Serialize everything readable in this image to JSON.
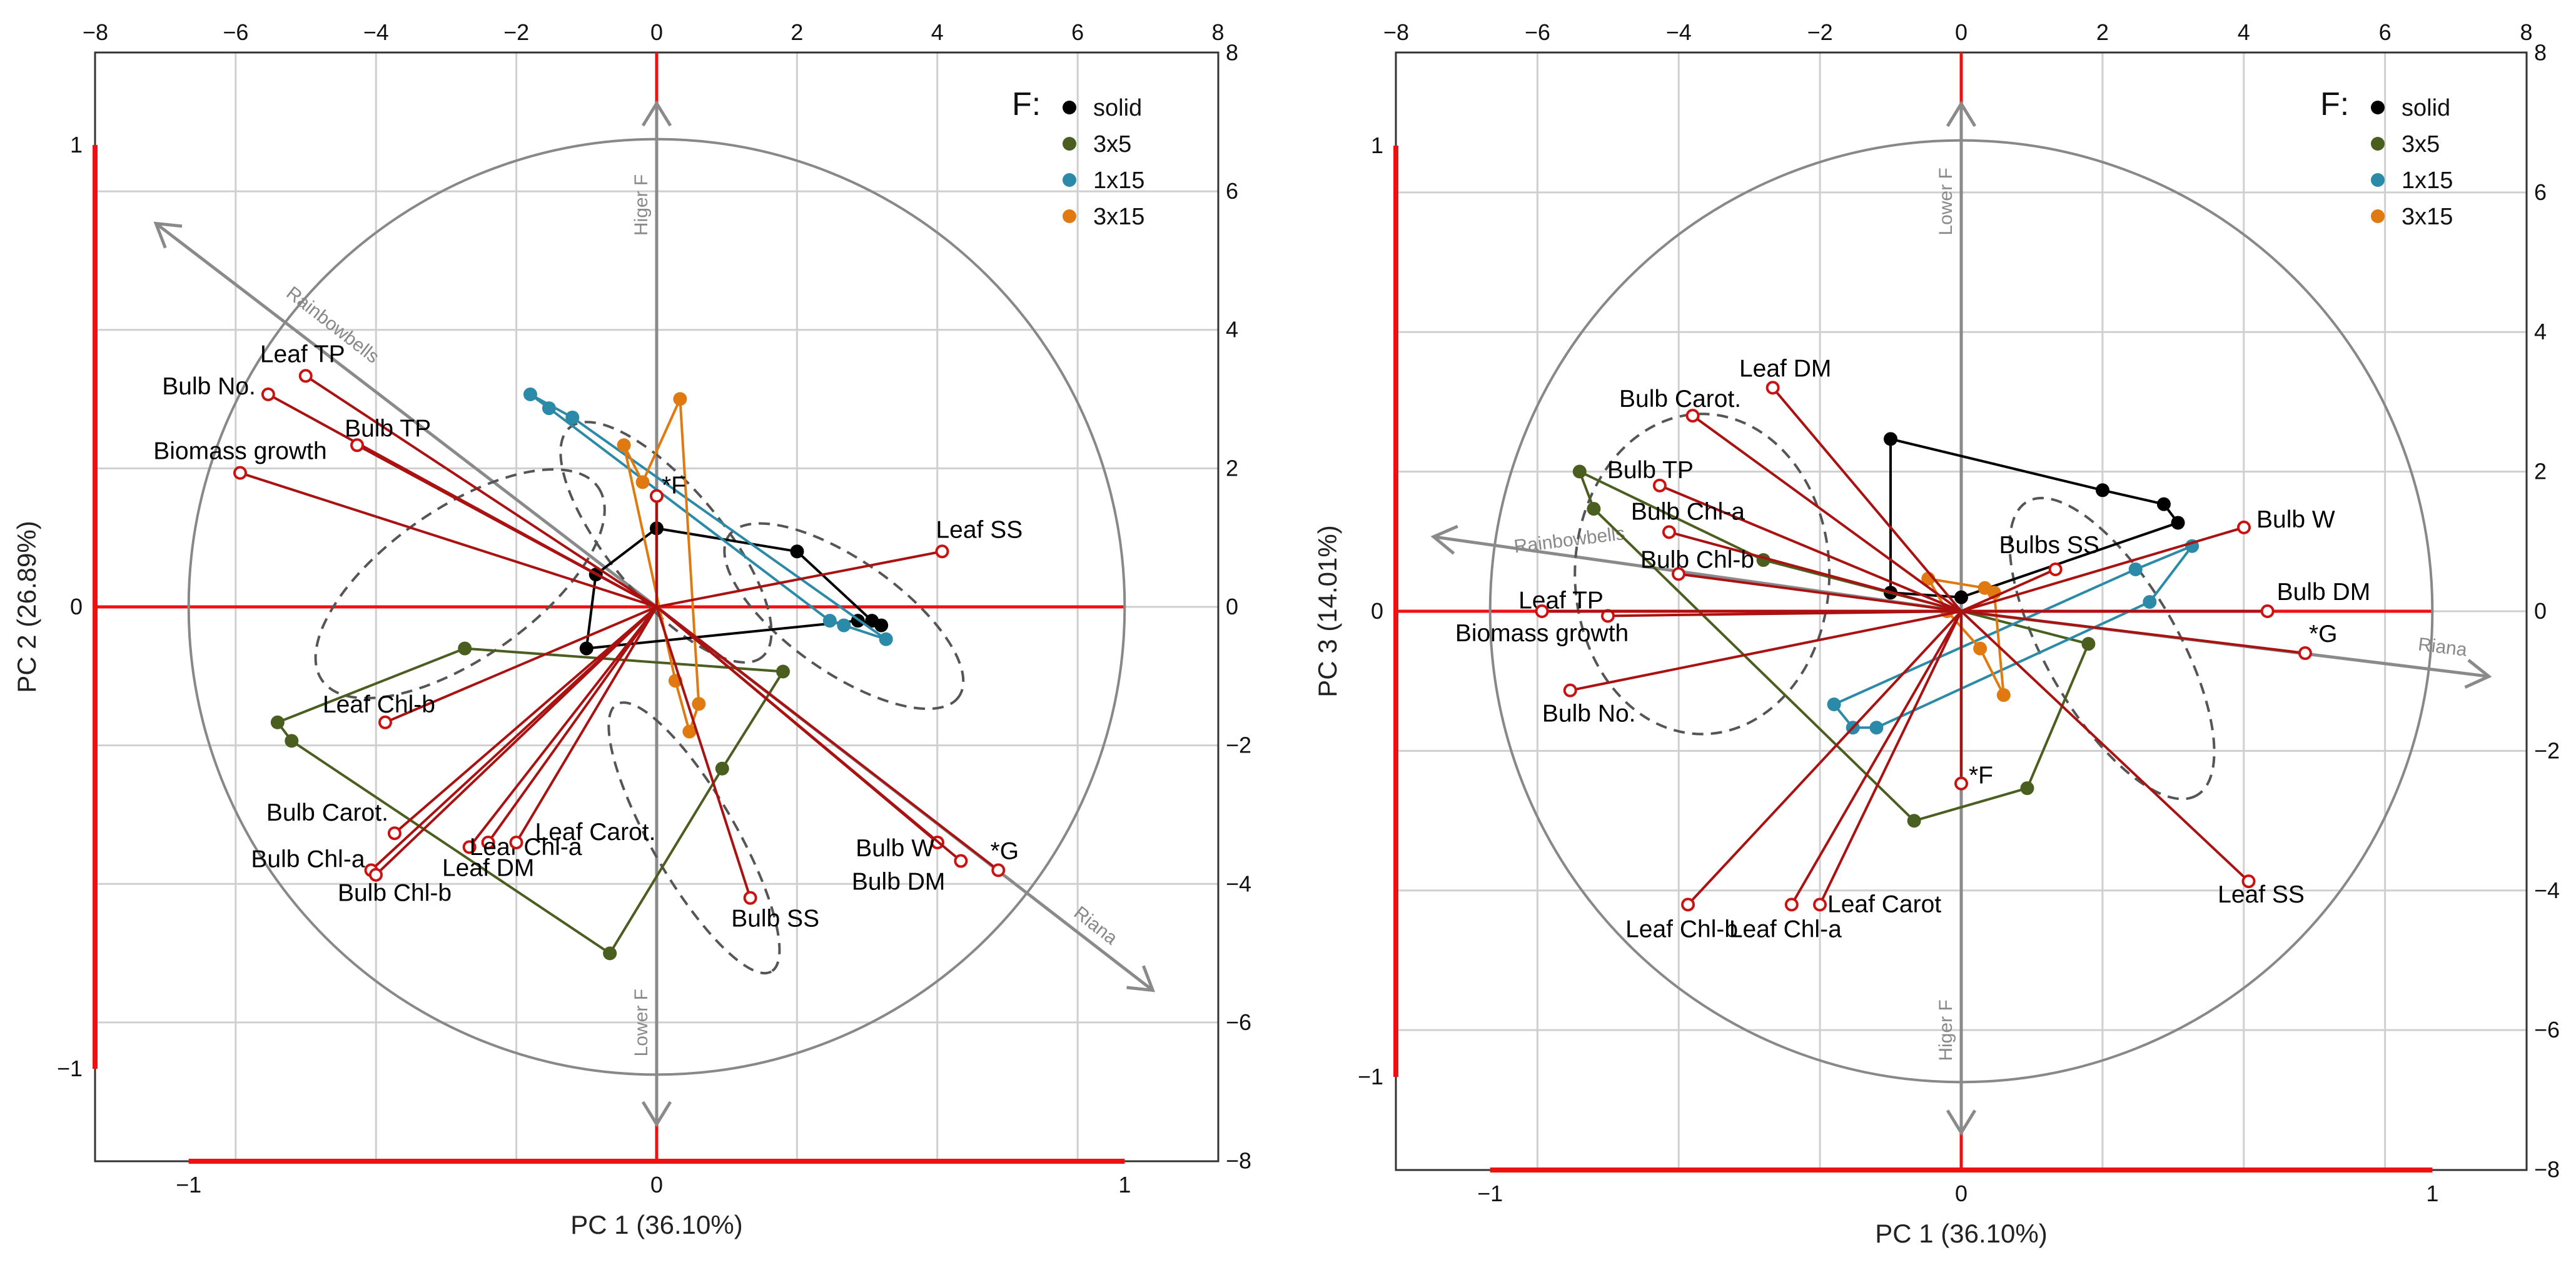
{
  "chart_data": [
    {
      "type": "scatter",
      "name": "pc1-pc2",
      "xlabel": "PC 1 (36.10%)",
      "ylabel": "PC 2 (26.89%)",
      "xlim": [
        -1.2,
        1.2
      ],
      "ylim": [
        -1.2,
        1.2
      ],
      "x_ticks": [
        -1,
        0,
        1
      ],
      "y_ticks": [
        -1,
        0,
        1
      ],
      "top_ticks": [
        -8,
        -6,
        -4,
        -2,
        0,
        2,
        4,
        6,
        8
      ],
      "right_ticks": [
        -8,
        -6,
        -4,
        -2,
        0,
        2,
        4,
        6,
        8
      ],
      "legend_title": "F:",
      "series": [
        {
          "name": "solid",
          "color": "#000000",
          "points": [
            [
              -0.15,
              -0.09
            ],
            [
              -0.13,
              0.07
            ],
            [
              -0.0,
              0.17
            ],
            [
              0.3,
              0.12
            ],
            [
              0.43,
              -0.03
            ],
            [
              0.46,
              -0.03
            ],
            [
              0.48,
              -0.04
            ]
          ]
        },
        {
          "name": "3x5",
          "color": "#4a5e1f",
          "points": [
            [
              -0.41,
              -0.09
            ],
            [
              -0.81,
              -0.25
            ],
            [
              -0.78,
              -0.29
            ],
            [
              -0.1,
              -0.75
            ],
            [
              0.14,
              -0.35
            ],
            [
              0.27,
              -0.14
            ]
          ]
        },
        {
          "name": "1x15",
          "color": "#2a8aa8",
          "points": [
            [
              -0.27,
              0.46
            ],
            [
              -0.23,
              0.43
            ],
            [
              -0.18,
              0.41
            ],
            [
              0.37,
              -0.03
            ],
            [
              0.4,
              -0.04
            ],
            [
              0.49,
              -0.07
            ]
          ]
        },
        {
          "name": "3x15",
          "color": "#e07a10",
          "points": [
            [
              0.05,
              0.45
            ],
            [
              -0.07,
              0.35
            ],
            [
              -0.03,
              0.27
            ],
            [
              0.04,
              -0.16
            ],
            [
              0.09,
              -0.21
            ],
            [
              0.07,
              -0.27
            ]
          ]
        }
      ],
      "variables": [
        {
          "label": "Leaf TP",
          "x": -0.75,
          "y": 0.5
        },
        {
          "label": "Bulb No.",
          "x": -0.83,
          "y": 0.46
        },
        {
          "label": "Bulb TP",
          "x": -0.64,
          "y": 0.35
        },
        {
          "label": "Biomass growth",
          "x": -0.89,
          "y": 0.29
        },
        {
          "label": "*F",
          "x": 0.0,
          "y": 0.24
        },
        {
          "label": "Leaf SS",
          "x": 0.61,
          "y": 0.12
        },
        {
          "label": "Leaf Chl-b",
          "x": -0.58,
          "y": -0.25
        },
        {
          "label": "Bulb Carot.",
          "x": -0.56,
          "y": -0.49
        },
        {
          "label": "Bulb Chl-a",
          "x": -0.61,
          "y": -0.57
        },
        {
          "label": "Bulb Chl-b",
          "x": -0.6,
          "y": -0.58
        },
        {
          "label": "Leaf DM",
          "x": -0.4,
          "y": -0.52
        },
        {
          "label": "Leaf Chl-a",
          "x": -0.36,
          "y": -0.51
        },
        {
          "label": "Leaf Carot.",
          "x": -0.3,
          "y": -0.51
        },
        {
          "label": "Bulb SS",
          "x": 0.2,
          "y": -0.63
        },
        {
          "label": "Bulb W",
          "x": 0.6,
          "y": -0.51
        },
        {
          "label": "Bulb DM",
          "x": 0.65,
          "y": -0.55
        },
        {
          "label": "*G",
          "x": 0.73,
          "y": -0.57
        }
      ],
      "direction_labels": [
        "Rainbowbells",
        "Riana",
        "Higer F",
        "Lower F"
      ]
    },
    {
      "type": "scatter",
      "name": "pc1-pc3",
      "xlabel": "PC 1 (36.10%)",
      "ylabel": "PC 3 (14.01%)",
      "xlim": [
        -1.2,
        1.2
      ],
      "ylim": [
        -1.2,
        1.2
      ],
      "x_ticks": [
        -1,
        0,
        1
      ],
      "y_ticks": [
        -1,
        0,
        1
      ],
      "top_ticks": [
        -8,
        -6,
        -4,
        -2,
        0,
        2,
        4,
        6,
        8
      ],
      "right_ticks": [
        -8,
        -6,
        -4,
        -2,
        0,
        2,
        4,
        6,
        8
      ],
      "legend_title": "F:",
      "series": [
        {
          "name": "solid",
          "color": "#000000",
          "points": [
            [
              -0.15,
              0.37
            ],
            [
              -0.15,
              0.04
            ],
            [
              0.0,
              0.03
            ],
            [
              0.3,
              0.26
            ],
            [
              0.43,
              0.23
            ],
            [
              0.46,
              0.19
            ]
          ]
        },
        {
          "name": "3x5",
          "color": "#4a5e1f",
          "points": [
            [
              -0.81,
              0.3
            ],
            [
              -0.78,
              0.22
            ],
            [
              -0.42,
              0.11
            ],
            [
              -0.1,
              -0.45
            ],
            [
              0.14,
              -0.38
            ],
            [
              0.27,
              -0.07
            ]
          ]
        },
        {
          "name": "1x15",
          "color": "#2a8aa8",
          "points": [
            [
              -0.27,
              -0.2
            ],
            [
              -0.23,
              -0.25
            ],
            [
              -0.18,
              -0.25
            ],
            [
              0.37,
              0.09
            ],
            [
              0.4,
              0.02
            ],
            [
              0.49,
              0.14
            ]
          ]
        },
        {
          "name": "3x15",
          "color": "#e07a10",
          "points": [
            [
              -0.07,
              0.07
            ],
            [
              0.05,
              0.05
            ],
            [
              0.04,
              -0.08
            ],
            [
              0.09,
              -0.18
            ],
            [
              -0.03,
              0.0
            ],
            [
              0.07,
              0.04
            ]
          ]
        }
      ],
      "variables": [
        {
          "label": "Leaf DM",
          "x": -0.4,
          "y": 0.48
        },
        {
          "label": "Bulb Carot.",
          "x": -0.57,
          "y": 0.42
        },
        {
          "label": "Bulb TP",
          "x": -0.64,
          "y": 0.27
        },
        {
          "label": "Bulb Chl-a",
          "x": -0.62,
          "y": 0.17
        },
        {
          "label": "Bulb Chl-b",
          "x": -0.6,
          "y": 0.08
        },
        {
          "label": "Leaf TP",
          "x": -0.75,
          "y": -0.01
        },
        {
          "label": "Biomass growth",
          "x": -0.89,
          "y": 0.0
        },
        {
          "label": "Bulb No.",
          "x": -0.83,
          "y": -0.17
        },
        {
          "label": "Bulbs SS",
          "x": 0.2,
          "y": 0.09
        },
        {
          "label": "Bulb W",
          "x": 0.6,
          "y": 0.18
        },
        {
          "label": "Bulb DM",
          "x": 0.65,
          "y": 0.0
        },
        {
          "label": "*G",
          "x": 0.73,
          "y": -0.09
        },
        {
          "label": "*F",
          "x": 0.0,
          "y": -0.37
        },
        {
          "label": "Leaf Chl-b",
          "x": -0.58,
          "y": -0.63
        },
        {
          "label": "Leaf Chl-a",
          "x": -0.36,
          "y": -0.63
        },
        {
          "label": "Leaf Carot",
          "x": -0.3,
          "y": -0.63
        },
        {
          "label": "Leaf SS",
          "x": 0.61,
          "y": -0.58
        }
      ],
      "direction_labels": [
        "Rainbowbells",
        "Riana",
        "Lower F",
        "Higer F"
      ]
    }
  ]
}
